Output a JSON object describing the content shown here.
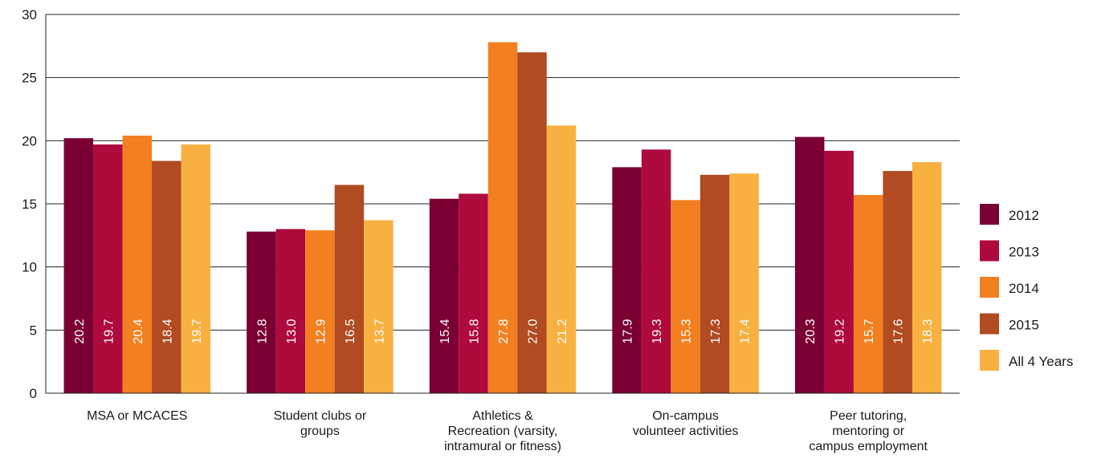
{
  "chart_data": {
    "type": "bar",
    "categories": [
      [
        "MSA or MCACES"
      ],
      [
        "Student clubs or",
        "groups"
      ],
      [
        "Athletics &",
        "Recreation (varsity,",
        "intramural or fitness)"
      ],
      [
        "On-campus",
        "volunteer activities"
      ],
      [
        "Peer tutoring,",
        "mentoring or",
        "campus employment"
      ]
    ],
    "series": [
      {
        "name": "2012",
        "color": "#7a0033",
        "values": [
          20.2,
          12.8,
          15.4,
          17.9,
          20.3
        ],
        "labels": [
          "20.2",
          "12.8",
          "15.4",
          "17.9",
          "20.3"
        ]
      },
      {
        "name": "2013",
        "color": "#ae0a3c",
        "values": [
          19.7,
          13.0,
          15.8,
          19.3,
          19.2
        ],
        "labels": [
          "19.7",
          "13.0",
          "15.8",
          "19.3",
          "19.2"
        ]
      },
      {
        "name": "2014",
        "color": "#f28020",
        "values": [
          20.4,
          12.9,
          27.8,
          15.3,
          15.7
        ],
        "labels": [
          "20.4",
          "12.9",
          "27.8",
          "15.3",
          "15.7"
        ]
      },
      {
        "name": "2015",
        "color": "#b04b22",
        "values": [
          18.4,
          16.5,
          27.0,
          17.3,
          17.6
        ],
        "labels": [
          "18.4",
          "16.5",
          "27.0",
          "17.3",
          "17.6"
        ]
      },
      {
        "name": "All 4 Years",
        "color": "#f8b040",
        "values": [
          19.7,
          13.7,
          21.2,
          17.4,
          18.3
        ],
        "labels": [
          "19.7",
          "13.7",
          "21.2",
          "17.4",
          "18.3"
        ]
      }
    ],
    "yticks": [
      "0",
      "5",
      "10",
      "15",
      "20",
      "25",
      "30"
    ],
    "ylim": [
      0,
      30
    ],
    "grid": true,
    "legend_position": "right"
  }
}
